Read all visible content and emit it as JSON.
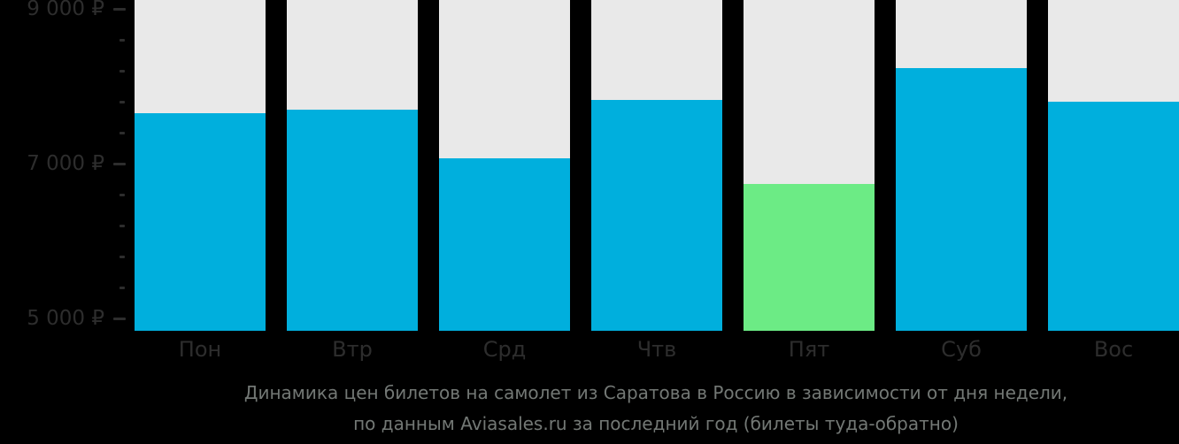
{
  "chart_data": {
    "type": "bar",
    "categories": [
      "Пон",
      "Втр",
      "Срд",
      "Чтв",
      "Пят",
      "Суб",
      "Вос"
    ],
    "values": [
      7650,
      7700,
      7070,
      7820,
      6740,
      8240,
      7800
    ],
    "highlight_index": 4,
    "highlight_meaning": "lowest-price-day",
    "currency": "₽",
    "ylim": [
      4850,
      9100
    ],
    "y_major_ticks": [
      {
        "value": 9000,
        "label": "9 000 ₽"
      },
      {
        "value": 7000,
        "label": "7 000 ₽"
      },
      {
        "value": 5000,
        "label": "5 000 ₽"
      }
    ],
    "y_minor_tick_values": [
      8600,
      8200,
      7800,
      7400,
      6600,
      6200,
      5800,
      5400
    ],
    "grid": "off",
    "legend": "none",
    "colors": {
      "bar": "#00AFDD",
      "highlight": "#6CEB85",
      "track": "#E9E9E9",
      "background": "#000000",
      "axis_text": "#2D2D2D",
      "caption_text": "#737875"
    }
  },
  "caption": {
    "line1": "Динамика цен билетов на самолет из Саратова в Россию в зависимости от дня недели,",
    "line2": "по данным Aviasales.ru за последний год (билеты туда-обратно)"
  }
}
